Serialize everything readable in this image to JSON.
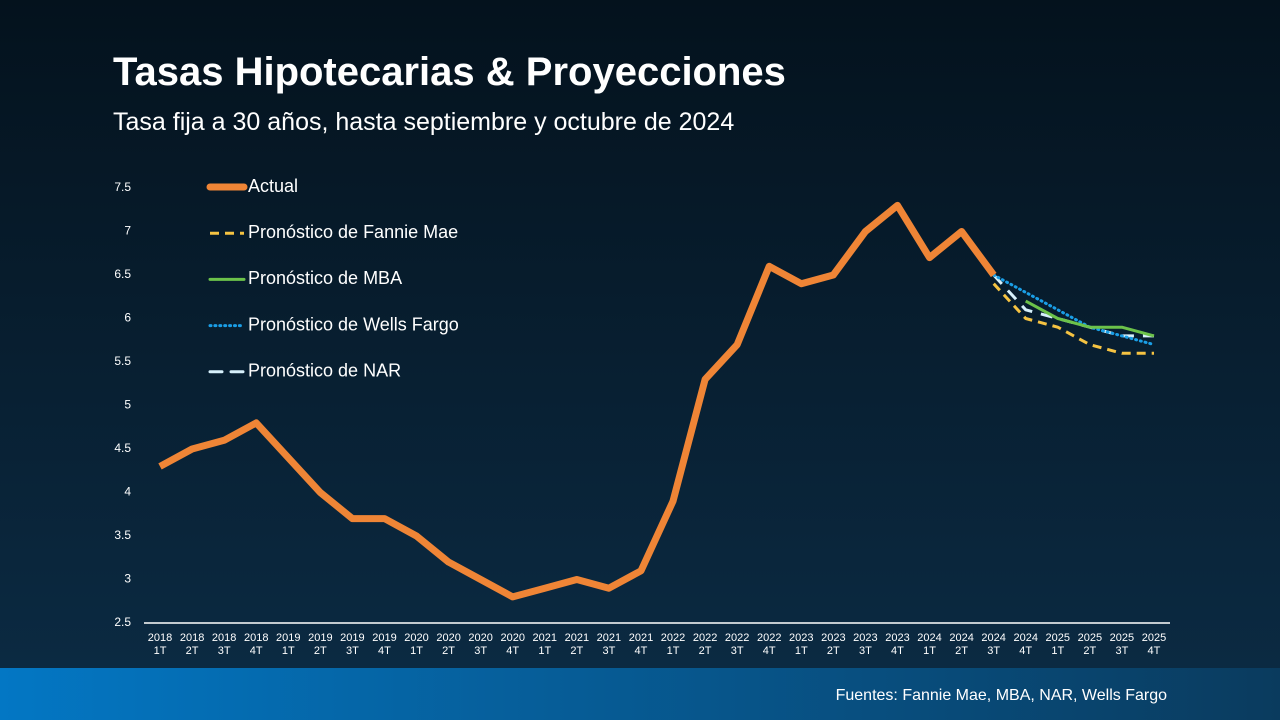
{
  "chart_data": {
    "type": "line",
    "title": "Tasas Hipotecarias & Proyecciones",
    "subtitle": "Tasa fija a 30 años, hasta septiembre y octubre de 2024",
    "source": "Fuentes: Fannie Mae, MBA, NAR, Wells Fargo",
    "categories": [
      "2018 1T",
      "2018 2T",
      "2018 3T",
      "2018 4T",
      "2019 1T",
      "2019 2T",
      "2019 3T",
      "2019 4T",
      "2020 1T",
      "2020 2T",
      "2020 3T",
      "2020 4T",
      "2021 1T",
      "2021 2T",
      "2021 3T",
      "2021 4T",
      "2022 1T",
      "2022 2T",
      "2022 3T",
      "2022 4T",
      "2023 1T",
      "2023 2T",
      "2023 3T",
      "2023 4T",
      "2024 1T",
      "2024 2T",
      "2024 3T",
      "2024 4T",
      "2025 1T",
      "2025 2T",
      "2025 3T",
      "2025 4T"
    ],
    "series": [
      {
        "name": "Actual",
        "color": "#ef8536",
        "style": "solid",
        "width": 7,
        "values": [
          4.3,
          4.5,
          4.6,
          4.8,
          4.4,
          4.0,
          3.7,
          3.7,
          3.5,
          3.2,
          3.0,
          2.8,
          2.9,
          3.0,
          2.9,
          3.1,
          3.9,
          5.3,
          5.7,
          6.6,
          6.4,
          6.5,
          7.0,
          7.3,
          6.7,
          7.0,
          6.5,
          null,
          null,
          null,
          null,
          null
        ]
      },
      {
        "name": "Pronóstico de Fannie Mae",
        "color": "#f5c342",
        "style": "dashed",
        "width": 3,
        "values": [
          null,
          null,
          null,
          null,
          null,
          null,
          null,
          null,
          null,
          null,
          null,
          null,
          null,
          null,
          null,
          null,
          null,
          null,
          null,
          null,
          null,
          null,
          null,
          null,
          null,
          null,
          6.4,
          6.0,
          5.9,
          5.7,
          5.6,
          5.6
        ]
      },
      {
        "name": "Pronóstico de MBA",
        "color": "#6cc24a",
        "style": "solid",
        "width": 3,
        "values": [
          null,
          null,
          null,
          null,
          null,
          null,
          null,
          null,
          null,
          null,
          null,
          null,
          null,
          null,
          null,
          null,
          null,
          null,
          null,
          null,
          null,
          null,
          null,
          null,
          null,
          null,
          null,
          6.2,
          6.0,
          5.9,
          5.9,
          5.8
        ]
      },
      {
        "name": "Pronóstico de Wells Fargo",
        "color": "#1a9ee6",
        "style": "dotted",
        "width": 3,
        "values": [
          null,
          null,
          null,
          null,
          null,
          null,
          null,
          null,
          null,
          null,
          null,
          null,
          null,
          null,
          null,
          null,
          null,
          null,
          null,
          null,
          null,
          null,
          null,
          null,
          null,
          null,
          6.5,
          6.3,
          6.1,
          5.9,
          5.8,
          5.7
        ]
      },
      {
        "name": "Pronóstico de NAR",
        "color": "#d6f0fb",
        "style": "longdash",
        "width": 3,
        "values": [
          null,
          null,
          null,
          null,
          null,
          null,
          null,
          null,
          null,
          null,
          null,
          null,
          null,
          null,
          null,
          null,
          null,
          null,
          null,
          null,
          null,
          null,
          null,
          null,
          null,
          null,
          6.5,
          6.1,
          6.0,
          5.9,
          5.8,
          5.8
        ]
      }
    ],
    "ylim": [
      2.5,
      7.5
    ],
    "yticks": [
      2.5,
      3,
      3.5,
      4,
      4.5,
      5,
      5.5,
      6,
      6.5,
      7,
      7.5
    ],
    "grid": false
  }
}
